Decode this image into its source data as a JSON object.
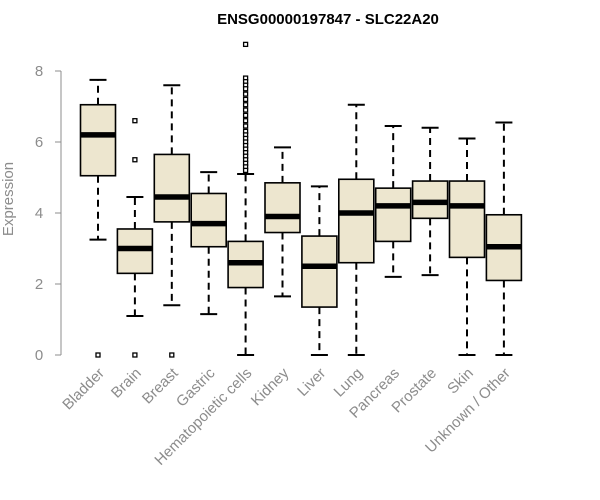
{
  "chart_data": {
    "type": "boxplot",
    "title": "ENSG00000197847 - SLC22A20",
    "xlabel": "",
    "ylabel": "Expression",
    "ylim": [
      0,
      9
    ],
    "yticks": [
      0,
      2,
      4,
      6,
      8
    ],
    "box_color": "#ede6cf",
    "categories": [
      "Bladder",
      "Brain",
      "Breast",
      "Gastric",
      "Hematopoietic cells",
      "Kidney",
      "Liver",
      "Lung",
      "Pancreas",
      "Prostate",
      "Skin",
      "Unknown / Other"
    ],
    "boxes": [
      {
        "category": "Bladder",
        "whisker_low": 3.25,
        "q1": 5.05,
        "median": 6.2,
        "q3": 7.05,
        "whisker_high": 7.75,
        "outliers": [
          0.0
        ]
      },
      {
        "category": "Brain",
        "whisker_low": 1.1,
        "q1": 2.3,
        "median": 3.0,
        "q3": 3.55,
        "whisker_high": 4.45,
        "outliers": [
          6.6,
          5.5,
          0.0
        ]
      },
      {
        "category": "Breast",
        "whisker_low": 1.4,
        "q1": 3.75,
        "median": 4.45,
        "q3": 5.65,
        "whisker_high": 7.6,
        "outliers": [
          0.0
        ]
      },
      {
        "category": "Gastric",
        "whisker_low": 1.15,
        "q1": 3.05,
        "median": 3.7,
        "q3": 4.55,
        "whisker_high": 5.15,
        "outliers": []
      },
      {
        "category": "Hematopoietic cells",
        "whisker_low": 0.0,
        "q1": 1.9,
        "median": 2.6,
        "q3": 3.2,
        "whisker_high": 5.1,
        "outliers": [
          8.75,
          7.8,
          7.7,
          7.6,
          7.5,
          7.35,
          7.2,
          7.05,
          6.9,
          6.75,
          6.6,
          6.45,
          6.3,
          6.2,
          6.1,
          6.0,
          5.9,
          5.8,
          5.7,
          5.6,
          5.5,
          5.4,
          5.3,
          5.2
        ]
      },
      {
        "category": "Kidney",
        "whisker_low": 1.65,
        "q1": 3.45,
        "median": 3.9,
        "q3": 4.85,
        "whisker_high": 5.85,
        "outliers": []
      },
      {
        "category": "Liver",
        "whisker_low": 0.0,
        "q1": 1.35,
        "median": 2.5,
        "q3": 3.35,
        "whisker_high": 4.75,
        "outliers": []
      },
      {
        "category": "Lung",
        "whisker_low": 0.0,
        "q1": 2.6,
        "median": 4.0,
        "q3": 4.95,
        "whisker_high": 7.05,
        "outliers": []
      },
      {
        "category": "Pancreas",
        "whisker_low": 2.2,
        "q1": 3.2,
        "median": 4.2,
        "q3": 4.7,
        "whisker_high": 6.45,
        "outliers": []
      },
      {
        "category": "Prostate",
        "whisker_low": 2.25,
        "q1": 3.85,
        "median": 4.3,
        "q3": 4.9,
        "whisker_high": 6.4,
        "outliers": []
      },
      {
        "category": "Skin",
        "whisker_low": 0.0,
        "q1": 2.75,
        "median": 4.2,
        "q3": 4.9,
        "whisker_high": 6.1,
        "outliers": []
      },
      {
        "category": "Unknown / Other",
        "whisker_low": 0.0,
        "q1": 2.1,
        "median": 3.05,
        "q3": 3.95,
        "whisker_high": 6.55,
        "outliers": []
      }
    ]
  }
}
